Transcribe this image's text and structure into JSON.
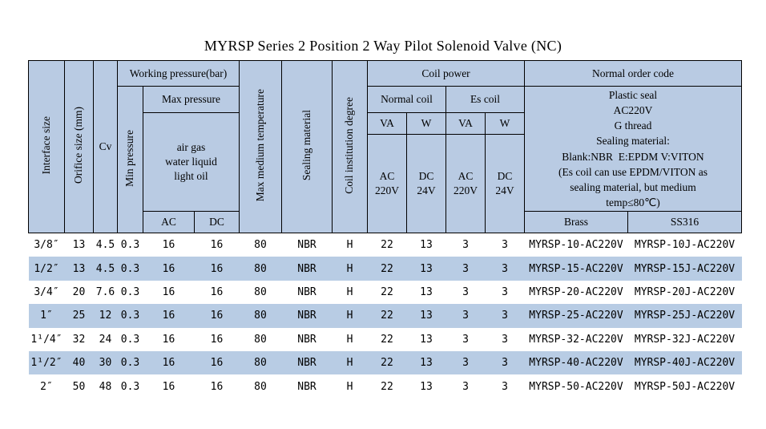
{
  "title": "MYRSP Series 2 Position 2 Way Pilot Solenoid Valve (NC)",
  "colors": {
    "header_bg": "#b9cbe3",
    "stripe_row_bg": "#b8cce4",
    "border": "#000000",
    "text": "#000000"
  },
  "table": {
    "header": {
      "interface_size": "Interface size",
      "orifice_size": "Orifice size (mm)",
      "cv": "Cv",
      "working_pressure": "Working pressure(bar)",
      "min_pressure": "Min pressure",
      "max_pressure": "Max pressure",
      "max_pressure_media": "air gas\nwater liquid\nlight oil",
      "max_pressure_ac": "AC",
      "max_pressure_dc": "DC",
      "max_medium_temperature": "Max medium temperature",
      "sealing_material": "Sealing material",
      "coil_institution_degree": "Coil institution degree",
      "coil_power": "Coil power",
      "normal_coil": "Normal coil",
      "es_coil": "Es coil",
      "va": "VA",
      "w": "W",
      "ac_220v": "AC\n220V",
      "dc_24v": "DC\n24V",
      "normal_order_code": "Normal order code",
      "order_note": "Plastic seal\nAC220V\nG thread\nSealing material:\nBlank:NBR  E:EPDM V:VITON\n(Es coil can use EPDM/VITON as\nsealing material, but medium\ntemp≤80℃)",
      "brass": "Brass",
      "ss316": "SS316"
    },
    "columns_order": [
      "interface",
      "orifice",
      "cv",
      "min_pressure",
      "max_ac",
      "max_dc",
      "max_temp",
      "sealing",
      "degree",
      "normal_va",
      "normal_w",
      "es_va",
      "es_w",
      "code_brass",
      "code_ss316"
    ],
    "rows": [
      {
        "interface": "3/8″",
        "orifice": "13",
        "cv": "4.5",
        "min_pressure": "0.3",
        "max_ac": "16",
        "max_dc": "16",
        "max_temp": "80",
        "sealing": "NBR",
        "degree": "H",
        "normal_va": "22",
        "normal_w": "13",
        "es_va": "3",
        "es_w": "3",
        "code_brass": "MYRSP-10-AC220V",
        "code_ss316": "MYRSP-10J-AC220V"
      },
      {
        "interface": "1/2″",
        "orifice": "13",
        "cv": "4.5",
        "min_pressure": "0.3",
        "max_ac": "16",
        "max_dc": "16",
        "max_temp": "80",
        "sealing": "NBR",
        "degree": "H",
        "normal_va": "22",
        "normal_w": "13",
        "es_va": "3",
        "es_w": "3",
        "code_brass": "MYRSP-15-AC220V",
        "code_ss316": "MYRSP-15J-AC220V"
      },
      {
        "interface": "3/4″",
        "orifice": "20",
        "cv": "7.6",
        "min_pressure": "0.3",
        "max_ac": "16",
        "max_dc": "16",
        "max_temp": "80",
        "sealing": "NBR",
        "degree": "H",
        "normal_va": "22",
        "normal_w": "13",
        "es_va": "3",
        "es_w": "3",
        "code_brass": "MYRSP-20-AC220V",
        "code_ss316": "MYRSP-20J-AC220V"
      },
      {
        "interface": "1″",
        "orifice": "25",
        "cv": "12",
        "min_pressure": "0.3",
        "max_ac": "16",
        "max_dc": "16",
        "max_temp": "80",
        "sealing": "NBR",
        "degree": "H",
        "normal_va": "22",
        "normal_w": "13",
        "es_va": "3",
        "es_w": "3",
        "code_brass": "MYRSP-25-AC220V",
        "code_ss316": "MYRSP-25J-AC220V"
      },
      {
        "interface": "1¹/4″",
        "orifice": "32",
        "cv": "24",
        "min_pressure": "0.3",
        "max_ac": "16",
        "max_dc": "16",
        "max_temp": "80",
        "sealing": "NBR",
        "degree": "H",
        "normal_va": "22",
        "normal_w": "13",
        "es_va": "3",
        "es_w": "3",
        "code_brass": "MYRSP-32-AC220V",
        "code_ss316": "MYRSP-32J-AC220V"
      },
      {
        "interface": "1¹/2″",
        "orifice": "40",
        "cv": "30",
        "min_pressure": "0.3",
        "max_ac": "16",
        "max_dc": "16",
        "max_temp": "80",
        "sealing": "NBR",
        "degree": "H",
        "normal_va": "22",
        "normal_w": "13",
        "es_va": "3",
        "es_w": "3",
        "code_brass": "MYRSP-40-AC220V",
        "code_ss316": "MYRSP-40J-AC220V"
      },
      {
        "interface": "2″",
        "orifice": "50",
        "cv": "48",
        "min_pressure": "0.3",
        "max_ac": "16",
        "max_dc": "16",
        "max_temp": "80",
        "sealing": "NBR",
        "degree": "H",
        "normal_va": "22",
        "normal_w": "13",
        "es_va": "3",
        "es_w": "3",
        "code_brass": "MYRSP-50-AC220V",
        "code_ss316": "MYRSP-50J-AC220V"
      }
    ]
  }
}
